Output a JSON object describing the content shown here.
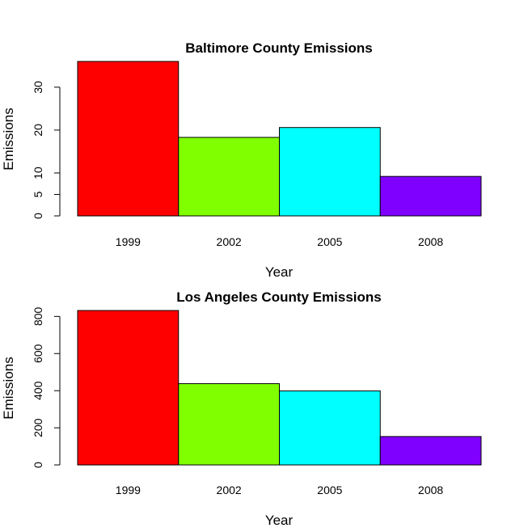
{
  "chart_data": [
    {
      "type": "bar",
      "title": "Baltimore County Emissions",
      "xlabel": "Year",
      "ylabel": "Emissions",
      "categories": [
        "1999",
        "2002",
        "2005",
        "2008"
      ],
      "values": [
        36,
        18.3,
        20.6,
        9.2
      ],
      "colors": [
        "#FF0000",
        "#80FF00",
        "#00FFFF",
        "#8000FF"
      ],
      "yticks": [
        0,
        5,
        10,
        20,
        30
      ],
      "ylim": [
        0,
        36
      ],
      "grid": false,
      "legend": "none"
    },
    {
      "type": "bar",
      "title": "Los Angeles County Emissions",
      "xlabel": "Year",
      "ylabel": "Emissions",
      "categories": [
        "1999",
        "2002",
        "2005",
        "2008"
      ],
      "values": [
        832,
        438,
        399,
        153
      ],
      "colors": [
        "#FF0000",
        "#80FF00",
        "#00FFFF",
        "#8000FF"
      ],
      "yticks": [
        0,
        200,
        400,
        600,
        800
      ],
      "ylim": [
        0,
        832
      ],
      "grid": false,
      "legend": "none"
    }
  ]
}
